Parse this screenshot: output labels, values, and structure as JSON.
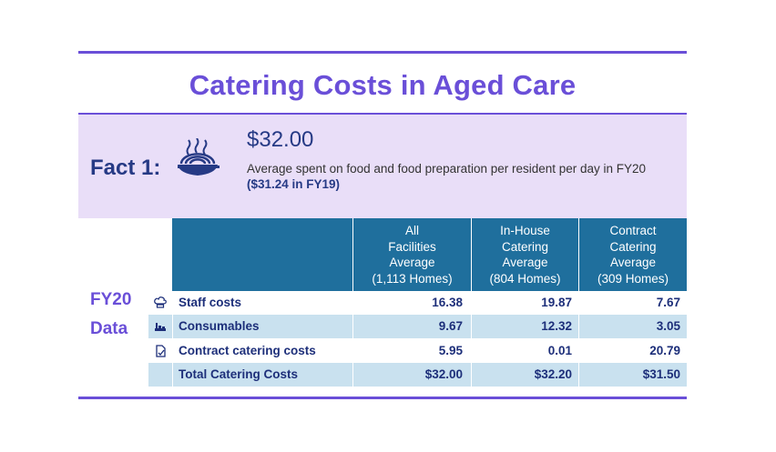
{
  "title": "Catering Costs in Aged Care",
  "fact": {
    "label": "Fact 1:",
    "amount": "$32.00",
    "description": "Average spent on food and food preparation per resident per day in FY20",
    "highlight": "($31.24 in FY19)",
    "icon": "food-bowl-icon"
  },
  "section_label": {
    "line1": "FY20",
    "line2": "Data"
  },
  "table": {
    "headers": [
      {
        "lines": [
          "All",
          "Facilities",
          "Average",
          "(1,113 Homes)"
        ]
      },
      {
        "lines": [
          "In-House",
          "Catering",
          "Average",
          "(804 Homes)"
        ]
      },
      {
        "lines": [
          "Contract",
          "Catering",
          "Average",
          "(309 Homes)"
        ]
      }
    ],
    "rows": [
      {
        "label": "Staff costs",
        "icon": "chef-hat-icon",
        "values": [
          "16.38",
          "19.87",
          "7.67"
        ]
      },
      {
        "label": "Consumables",
        "icon": "consumables-icon",
        "values": [
          "9.67",
          "12.32",
          "3.05"
        ]
      },
      {
        "label": "Contract catering costs",
        "icon": "contract-icon",
        "values": [
          "5.95",
          "0.01",
          "20.79"
        ]
      },
      {
        "label": "Total Catering Costs",
        "icon": "",
        "values": [
          "$32.00",
          "$32.20",
          "$31.50"
        ]
      }
    ]
  },
  "colors": {
    "accent_purple": "#6a4fd8",
    "fact_band": "#e9def8",
    "navy_text": "#263a85",
    "table_header": "#1f6f9d",
    "row_alt": "#c9e1ef"
  }
}
